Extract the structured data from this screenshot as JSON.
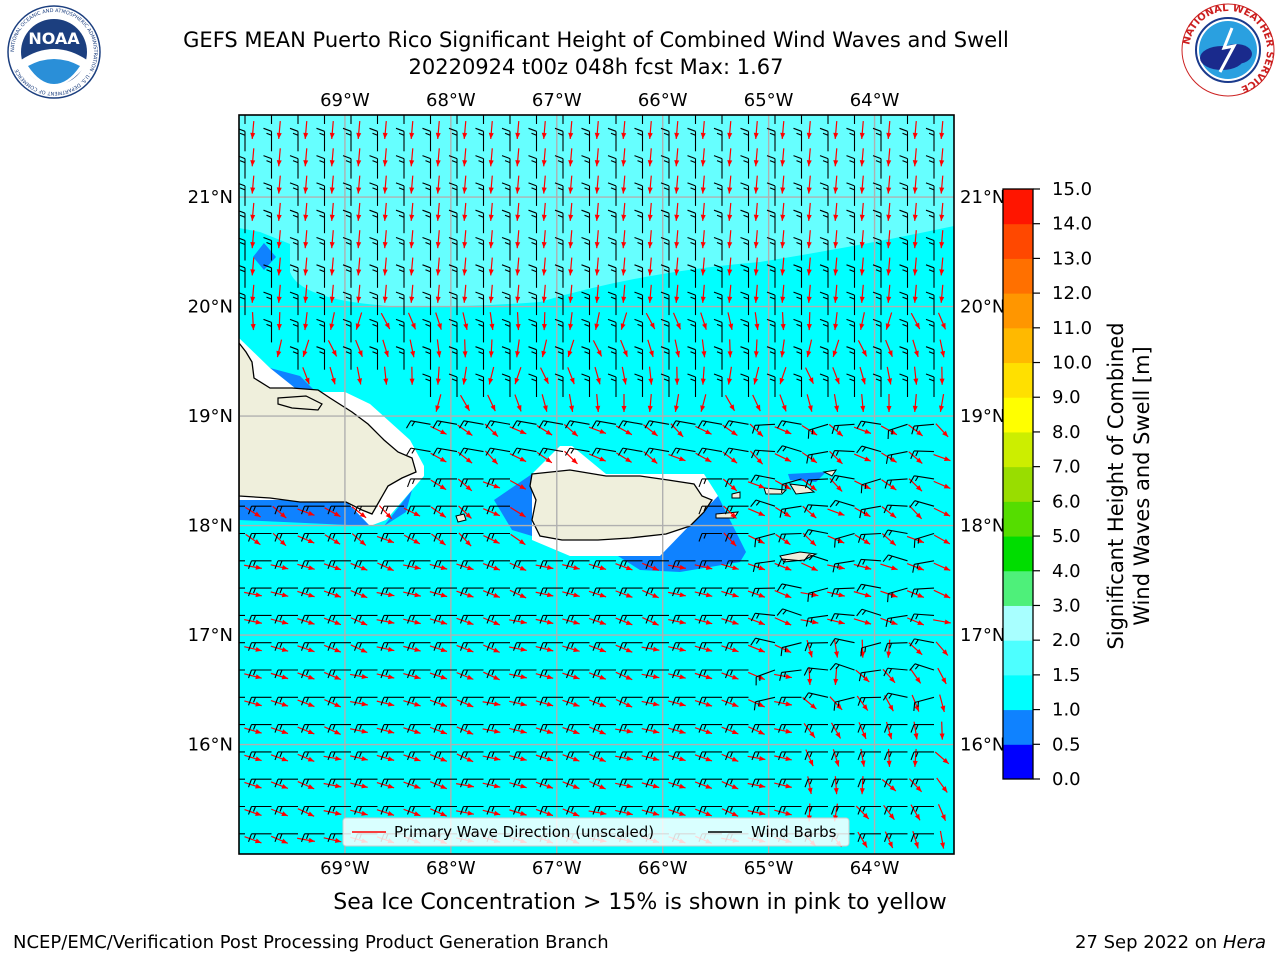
{
  "title": {
    "line1": "GEFS MEAN Puerto Rico Significant Height of Combined Wind Waves and Swell",
    "line2": "20220924 t00z 048h fcst   Max: 1.67"
  },
  "logos": {
    "noaa": {
      "text": "NOAA",
      "ring_text": "NATIONAL OCEANIC AND ATMOSPHERIC ADMINISTRATION · U.S. DEPARTMENT OF COMMERCE",
      "icon": "noaa-logo"
    },
    "nws": {
      "ring_text": "NATIONAL WEATHER SERVICE",
      "icon": "nws-logo"
    }
  },
  "map": {
    "lon_labels": [
      "69°W",
      "68°W",
      "67°W",
      "66°W",
      "65°W",
      "64°W"
    ],
    "lon_values": [
      -69,
      -68,
      -67,
      -66,
      -65,
      -64
    ],
    "lat_labels": [
      "21°N",
      "20°N",
      "19°N",
      "18°N",
      "17°N",
      "16°N"
    ],
    "lat_values": [
      21,
      20,
      19,
      18,
      17,
      16
    ],
    "extent": {
      "lon_min": -70,
      "lon_max": -63.25,
      "lat_min": 15,
      "lat_max": 21.75
    },
    "colors": {
      "ocean_main": "#00ffff",
      "ocean_light": "#66ffff",
      "ocean_blue": "#0f82ff",
      "land": "#efefdc",
      "arrow": "#ff0000",
      "barb": "#000000",
      "grid": "#b0b0b0"
    },
    "legend": {
      "wave_label": "Primary Wave Direction (unscaled)",
      "barb_label": "Wind Barbs"
    }
  },
  "colorbar": {
    "label_line1": "Significant Height of Combined",
    "label_line2": "Wind Waves and Swell [m]",
    "ticks": [
      "0.0",
      "0.5",
      "1.0",
      "1.5",
      "2.0",
      "3.0",
      "4.0",
      "5.0",
      "6.0",
      "7.0",
      "8.0",
      "9.0",
      "10.0",
      "11.0",
      "12.0",
      "13.0",
      "14.0",
      "15.0"
    ],
    "colors": [
      "#0000ff",
      "#0f82ff",
      "#00ffff",
      "#4dffff",
      "#a8ffff",
      "#4ef07a",
      "#00dd00",
      "#55dd00",
      "#99dd00",
      "#ccee00",
      "#ffff00",
      "#ffe000",
      "#ffb900",
      "#ff9600",
      "#ff7000",
      "#ff4800",
      "#ff1500"
    ]
  },
  "caption": "Sea Ice Concentration > 15% is shown in pink to yellow",
  "footer": {
    "left": "NCEP/EMC/Verification Post Processing Product Generation Branch",
    "right_prefix": "27 Sep 2022 on ",
    "right_italic": "Hera"
  }
}
